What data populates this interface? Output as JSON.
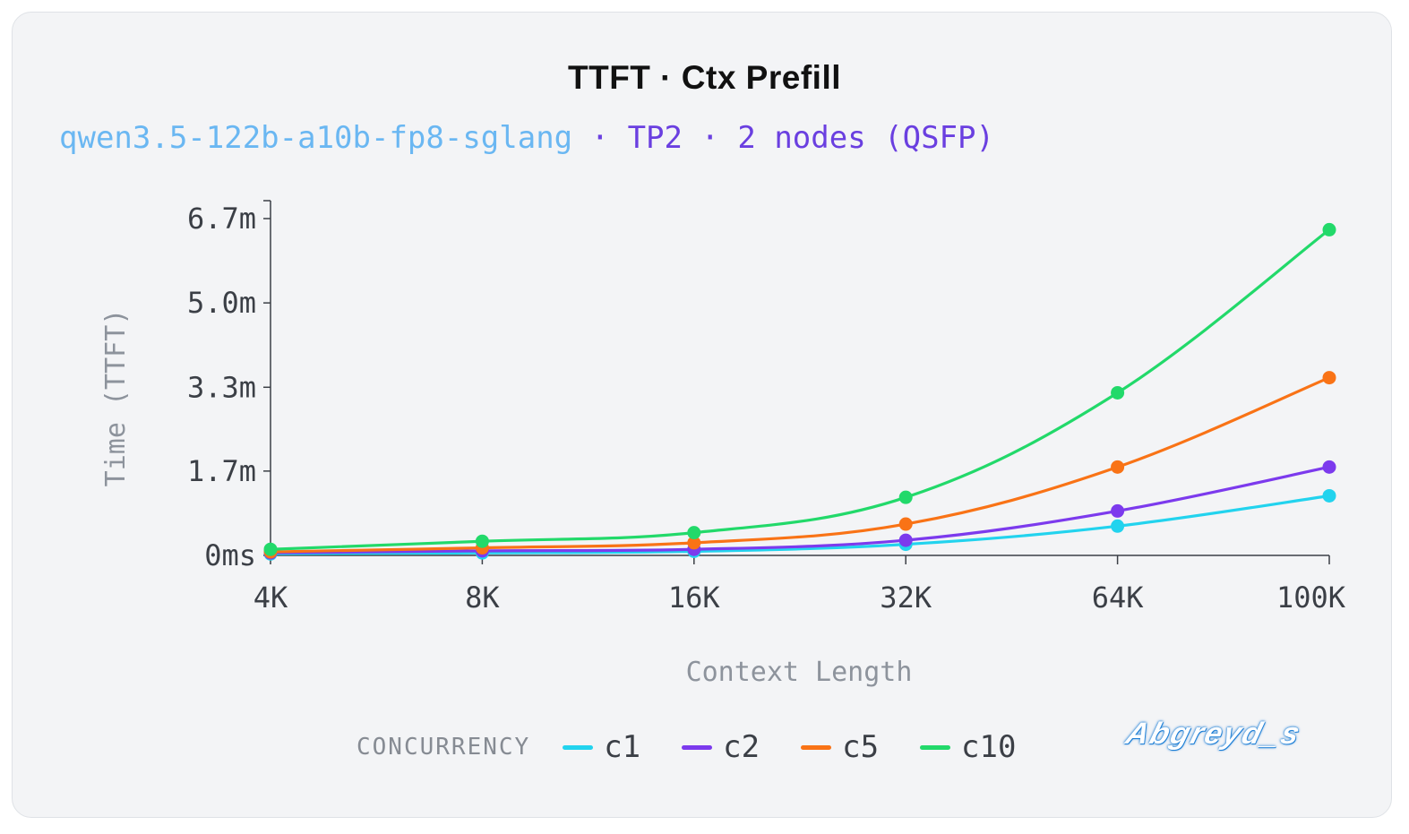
{
  "chart_data": {
    "type": "line",
    "title": "TTFT · Ctx Prefill",
    "subtitle_model": "qwen3.5-122b-a10b-fp8-sglang",
    "subtitle_rest": " · TP2 · 2 nodes (QSFP)",
    "xlabel": "Context Length",
    "ylabel": "Time (TTFT)",
    "categories": [
      "4K",
      "8K",
      "16K",
      "32K",
      "64K",
      "100K"
    ],
    "y_ticks": [
      {
        "value": 0,
        "label": "0ms"
      },
      {
        "value": 1.67,
        "label": "1.7m"
      },
      {
        "value": 3.33,
        "label": "3.3m"
      },
      {
        "value": 5.0,
        "label": "5.0m"
      },
      {
        "value": 6.67,
        "label": "6.7m"
      }
    ],
    "ylim": [
      0,
      6.67
    ],
    "y_unit": "minutes",
    "grid": false,
    "legend_title": "CONCURRENCY",
    "legend_position": "bottom",
    "series": [
      {
        "name": "c1",
        "color": "#22d3ee",
        "values": [
          0.03,
          0.05,
          0.08,
          0.22,
          0.58,
          1.18
        ]
      },
      {
        "name": "c2",
        "color": "#7c3aed",
        "values": [
          0.05,
          0.09,
          0.12,
          0.3,
          0.88,
          1.75
        ]
      },
      {
        "name": "c5",
        "color": "#f97316",
        "values": [
          0.07,
          0.15,
          0.25,
          0.62,
          1.75,
          3.52
        ]
      },
      {
        "name": "c10",
        "color": "#22d96a",
        "values": [
          0.12,
          0.28,
          0.45,
          1.15,
          3.22,
          6.45
        ]
      }
    ]
  },
  "watermark": "Abgreyd_s"
}
